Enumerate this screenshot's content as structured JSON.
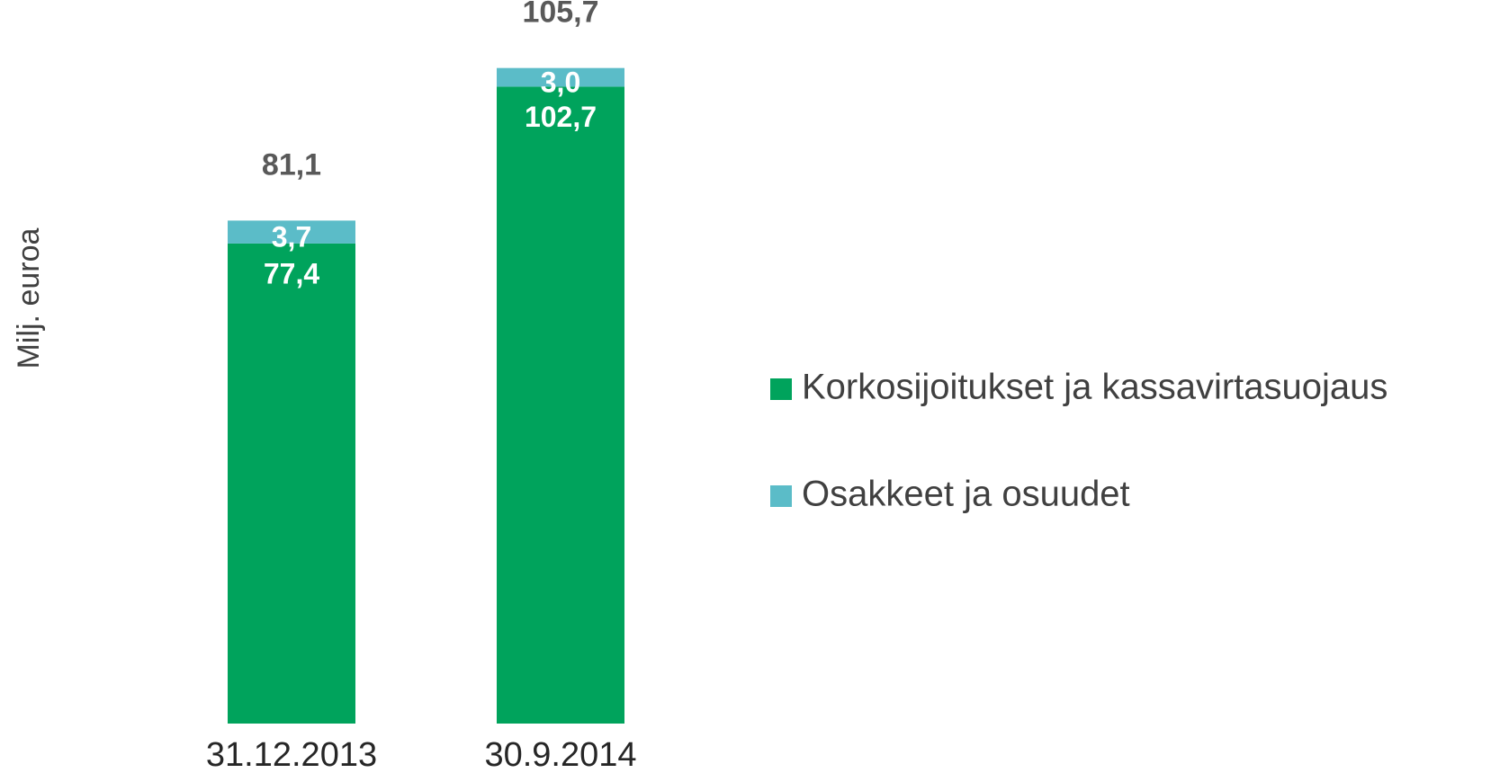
{
  "chart_data": {
    "type": "stacked_bar",
    "y_label": "Milj. euroa",
    "categories": [
      "31.12.2013",
      "30.9.2014"
    ],
    "series": [
      {
        "name": "Korkosijoitukset ja kassavirtasuojaus",
        "color": "#00a35c",
        "values": [
          77.4,
          102.7
        ],
        "value_labels": [
          "77,4",
          "102,7"
        ]
      },
      {
        "name": "Osakkeet ja osuudet",
        "color": "#5bbcc8",
        "values": [
          3.7,
          3.0
        ],
        "value_labels": [
          "3,7",
          "3,0"
        ]
      }
    ],
    "totals": [
      81.1,
      105.7
    ],
    "total_labels": [
      "81,1",
      "105,7"
    ],
    "ylim": [
      0,
      110
    ],
    "legend": "right"
  }
}
